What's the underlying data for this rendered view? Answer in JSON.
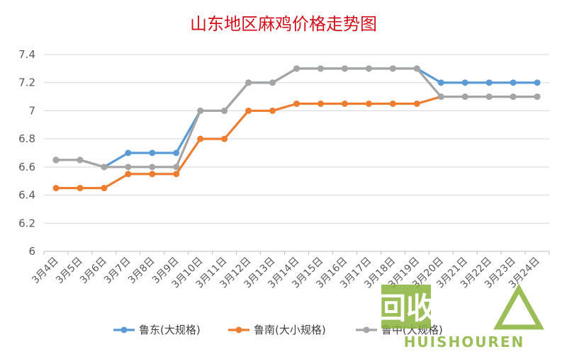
{
  "chart_data": {
    "type": "line",
    "title": "山东地区麻鸡价格走势图",
    "xlabel": "",
    "ylabel": "",
    "ylim": [
      6,
      7.4
    ],
    "yticks": [
      "6",
      "6.2",
      "6.4",
      "6.6",
      "6.8",
      "7",
      "7.2",
      "7.4"
    ],
    "grid": true,
    "legend": "bottom",
    "categories": [
      "3月4日",
      "3月5日",
      "3月6日",
      "3月7日",
      "3月8日",
      "3月9日",
      "3月10日",
      "3月11日",
      "3月12日",
      "3月13日",
      "3月14日",
      "3月15日",
      "3月16日",
      "3月17日",
      "3月18日",
      "3月19日",
      "3月20日",
      "3月21日",
      "3月22日",
      "3月23日",
      "3月24日"
    ],
    "series": [
      {
        "name": "鲁东(大规格)",
        "color": "#5b9bd5",
        "values": [
          6.65,
          6.65,
          6.6,
          6.7,
          6.7,
          6.7,
          7.0,
          7.0,
          7.2,
          7.2,
          7.3,
          7.3,
          7.3,
          7.3,
          7.3,
          7.3,
          7.2,
          7.2,
          7.2,
          7.2,
          7.2
        ]
      },
      {
        "name": "鲁南(大小规格)",
        "color": "#ed7d31",
        "values": [
          6.45,
          6.45,
          6.45,
          6.55,
          6.55,
          6.55,
          6.8,
          6.8,
          7.0,
          7.0,
          7.05,
          7.05,
          7.05,
          7.05,
          7.05,
          7.05,
          7.1,
          7.1,
          7.1,
          7.1,
          7.1
        ]
      },
      {
        "name": "鲁中(大规格)",
        "color": "#a5a5a5",
        "values": [
          6.65,
          6.65,
          6.6,
          6.6,
          6.6,
          6.6,
          7.0,
          7.0,
          7.2,
          7.2,
          7.3,
          7.3,
          7.3,
          7.3,
          7.3,
          7.3,
          7.1,
          7.1,
          7.1,
          7.1,
          7.1
        ]
      }
    ]
  },
  "watermark": {
    "logo_text": "回收",
    "brand_text": "HUISHOUREN",
    "color": "#8bb33b"
  }
}
